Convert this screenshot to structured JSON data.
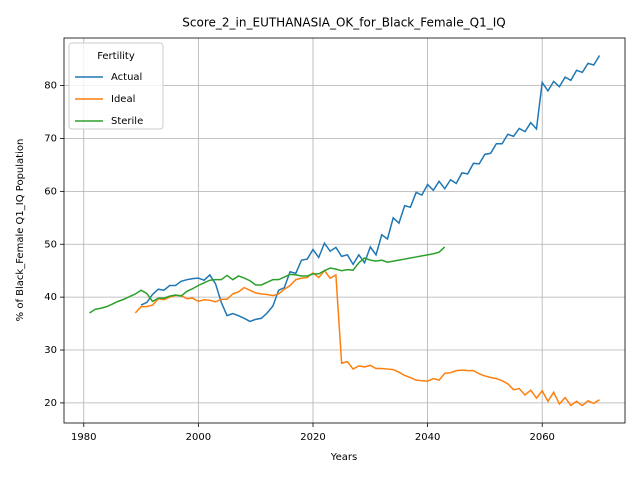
{
  "chart_data": {
    "type": "line",
    "title": "Score_2_in_EUTHANASIA_OK_for_Black_Female_Q1_IQ",
    "x_label": "Years",
    "y_label": "% of Black_Female Q1_IQ Population",
    "legend_title": "Fertility",
    "legend": "upper left",
    "grid": true,
    "x": [
      1981,
      1982,
      1983,
      1984,
      1985,
      1986,
      1987,
      1988,
      1989,
      1990,
      1991,
      1992,
      1993,
      1994,
      1995,
      1996,
      1997,
      1998,
      1999,
      2000,
      2001,
      2002,
      2003,
      2004,
      2005,
      2006,
      2007,
      2008,
      2009,
      2010,
      2011,
      2012,
      2013,
      2014,
      2015,
      2016,
      2017,
      2018,
      2019,
      2020,
      2021,
      2022,
      2023,
      2024,
      2025,
      2026,
      2027,
      2028,
      2029,
      2030,
      2031,
      2032,
      2033,
      2034,
      2035,
      2036,
      2037,
      2038,
      2039,
      2040,
      2041,
      2042,
      2043,
      2044,
      2045,
      2046,
      2047,
      2048,
      2049,
      2050,
      2051,
      2052,
      2053,
      2054,
      2055,
      2056,
      2057,
      2058,
      2059,
      2060,
      2061,
      2062,
      2063,
      2064,
      2065,
      2066,
      2067,
      2068,
      2069,
      2070
    ],
    "series": [
      {
        "name": "Actual",
        "color": "#1f77b4",
        "values": [
          null,
          null,
          null,
          null,
          null,
          null,
          null,
          null,
          null,
          38.5,
          39,
          40.5,
          41.5,
          41.3,
          42.2,
          42.2,
          43,
          43.3,
          43.5,
          43.6,
          43.2,
          44.2,
          42.5,
          39,
          36.5,
          36.9,
          36.5,
          36,
          35.4,
          35.8,
          36,
          37,
          38.3,
          41.3,
          41.8,
          44.8,
          44.5,
          47,
          47.2,
          49,
          47.5,
          50.2,
          48.7,
          49.4,
          47.7,
          48,
          46.2,
          48,
          46.5,
          49.5,
          48,
          51.8,
          51,
          55,
          54,
          57.3,
          57,
          59.8,
          59.3,
          61.3,
          60.2,
          61.9,
          60.5,
          62.2,
          61.5,
          63.5,
          63.3,
          65.3,
          65.2,
          67,
          67.2,
          69,
          69,
          70.8,
          70.4,
          71.9,
          71.3,
          73,
          71.8,
          80.6,
          79,
          80.8,
          79.8,
          81.6,
          81,
          82.9,
          82.5,
          84.2,
          83.9,
          85.7
        ]
      },
      {
        "name": "Ideal",
        "color": "#ff7f0e",
        "values": [
          null,
          null,
          null,
          null,
          null,
          null,
          null,
          null,
          37,
          38.2,
          38.2,
          38.5,
          39.7,
          39.5,
          40,
          40.3,
          40.3,
          39.7,
          39.8,
          39.2,
          39.5,
          39.4,
          39.1,
          39.6,
          39.6,
          40.6,
          41,
          41.8,
          41.3,
          40.8,
          40.6,
          40.5,
          40.3,
          40.6,
          41.5,
          42.2,
          43.3,
          43.6,
          43.7,
          44.6,
          43.7,
          45,
          43.6,
          44.2,
          27.5,
          27.8,
          26.4,
          27,
          26.8,
          27.1,
          26.5,
          26.5,
          26.4,
          26.3,
          25.8,
          25.2,
          24.8,
          24.3,
          24.2,
          24.1,
          24.6,
          24.3,
          25.6,
          25.7,
          26.1,
          26.2,
          26.1,
          26.1,
          25.5,
          25.1,
          24.8,
          24.6,
          24.2,
          23.6,
          22.5,
          22.7,
          21.5,
          22.4,
          20.9,
          22.3,
          20.3,
          22,
          19.8,
          21,
          19.5,
          20.3,
          19.5,
          20.4,
          19.9,
          20.6
        ]
      },
      {
        "name": "Sterile",
        "color": "#2ca02c",
        "values": [
          37,
          37.7,
          37.9,
          38.2,
          38.7,
          39.2,
          39.6,
          40.1,
          40.6,
          41.3,
          40.7,
          39.2,
          39.8,
          39.8,
          40.2,
          40.4,
          40.2,
          41.1,
          41.6,
          42.2,
          42.7,
          43.2,
          43.3,
          43.3,
          44.1,
          43.3,
          44,
          43.6,
          43.1,
          42.3,
          42.3,
          42.8,
          43.3,
          43.3,
          43.8,
          44.3,
          44.2,
          44,
          44,
          44.4,
          44.4,
          45,
          45.5,
          45.3,
          45,
          45.2,
          45.1,
          46.5,
          47.4,
          47,
          46.8,
          47,
          46.6,
          46.8,
          47,
          47.2,
          47.4,
          47.6,
          47.8,
          48,
          48.2,
          48.5,
          49.5,
          null,
          null,
          null,
          null,
          null,
          null,
          null,
          null,
          null,
          null,
          null,
          null,
          null,
          null,
          null,
          null,
          null,
          null,
          null,
          null,
          null,
          null,
          null,
          null,
          null,
          null,
          null
        ]
      }
    ],
    "xlim": [
      1976.55,
      2074.45
    ],
    "xticks": [
      1980,
      2000,
      2020,
      2040,
      2060
    ],
    "ylim": [
      16.2,
      89.0
    ],
    "yticks": [
      20,
      30,
      40,
      50,
      60,
      70,
      80
    ]
  }
}
